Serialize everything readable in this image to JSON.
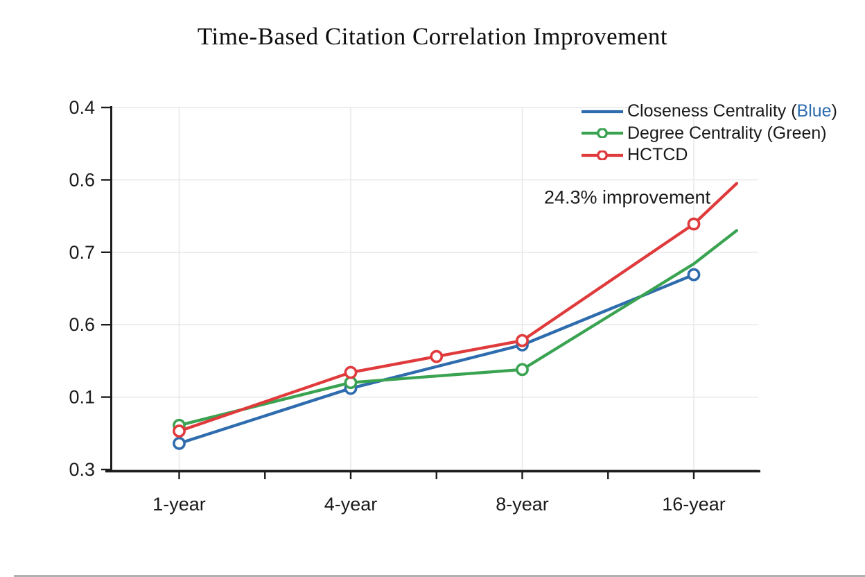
{
  "chart_data": {
    "type": "line",
    "title": "Time-Based Citation Correlation Improvement",
    "categories": [
      "1-year",
      "4-year",
      "8-year",
      "16-year"
    ],
    "y_axis_tick_labels_top_to_bottom": [
      "0.4",
      "0.6",
      "0.7",
      "0.6",
      "0.1",
      "0.3"
    ],
    "annotation": "24.3% improvement",
    "grid": "on",
    "legend_position": "top-right",
    "units_note": "y = vertical grid units above the x-axis (1 unit = one y-tick interval); x = category index (0=1-year, 1=4-year, 2=8-year, 3=16-year; fractional x = between ticks, lines extend past last category)",
    "series": [
      {
        "name": "Closeness Centrality (Blue)",
        "color": "#2e6cae",
        "points": [
          {
            "x": 0,
            "y": 0.38,
            "marker": true
          },
          {
            "x": 1,
            "y": 1.14,
            "marker": true
          },
          {
            "x": 2,
            "y": 1.74,
            "marker": true
          },
          {
            "x": 3,
            "y": 2.71,
            "marker": true
          }
        ]
      },
      {
        "name": "Degree Centrality (Green)",
        "color": "#3aa351",
        "points": [
          {
            "x": 0,
            "y": 0.63,
            "marker": true
          },
          {
            "x": 1,
            "y": 1.22,
            "marker": true
          },
          {
            "x": 2,
            "y": 1.4,
            "marker": true
          },
          {
            "x": 3,
            "y": 2.86,
            "marker": false
          },
          {
            "x": 3.25,
            "y": 3.32,
            "marker": false
          }
        ]
      },
      {
        "name": "HCTCD",
        "color": "#df3a3c",
        "points": [
          {
            "x": 0,
            "y": 0.55,
            "marker": true
          },
          {
            "x": 1,
            "y": 1.36,
            "marker": true
          },
          {
            "x": 1.5,
            "y": 1.58,
            "marker": true
          },
          {
            "x": 2,
            "y": 1.8,
            "marker": true
          },
          {
            "x": 3,
            "y": 3.41,
            "marker": true
          },
          {
            "x": 3.25,
            "y": 3.97,
            "marker": false
          }
        ]
      }
    ]
  },
  "legend": {
    "items": [
      {
        "swatch": "line",
        "series_index": 0,
        "label_parts": [
          {
            "text": "Closeness Centrality ("
          },
          {
            "text": "Blue",
            "color": "#2e6cae"
          },
          {
            "text": ")"
          }
        ]
      },
      {
        "swatch": "line-marker",
        "series_index": 1,
        "label_parts": [
          {
            "text": "Degree Centrality (Green)"
          }
        ]
      },
      {
        "swatch": "line-marker",
        "series_index": 2,
        "label_parts": [
          {
            "text": "HCTCD"
          }
        ]
      }
    ]
  },
  "colors": {
    "blue": "#2e6cae",
    "green": "#3aa351",
    "red": "#df3a3c",
    "gridline": "#e7e7e7",
    "axis": "#1c1c1c",
    "text": "#1a1a1a"
  }
}
